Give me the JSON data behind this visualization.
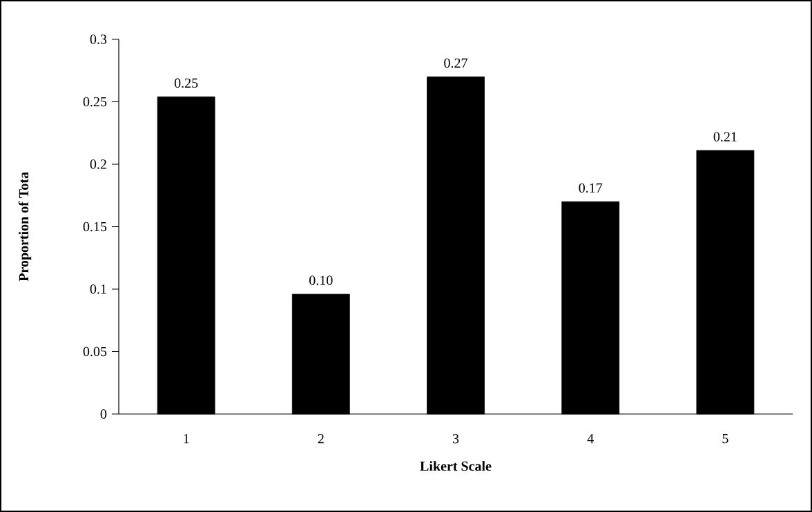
{
  "chart_data": {
    "type": "bar",
    "xlabel": "Likert Scale",
    "ylabel": "Proportion of Tota",
    "categories": [
      "1",
      "2",
      "3",
      "4",
      "5"
    ],
    "values": [
      0.254,
      0.096,
      0.27,
      0.17,
      0.211
    ],
    "value_labels": [
      "0.25",
      "0.10",
      "0.27",
      "0.17",
      "0.21"
    ],
    "color": "#000000",
    "ylim": [
      0,
      0.3
    ],
    "yticks": [
      0,
      0.05,
      0.1,
      0.15,
      0.2,
      0.25,
      0.3
    ],
    "grid": false
  }
}
